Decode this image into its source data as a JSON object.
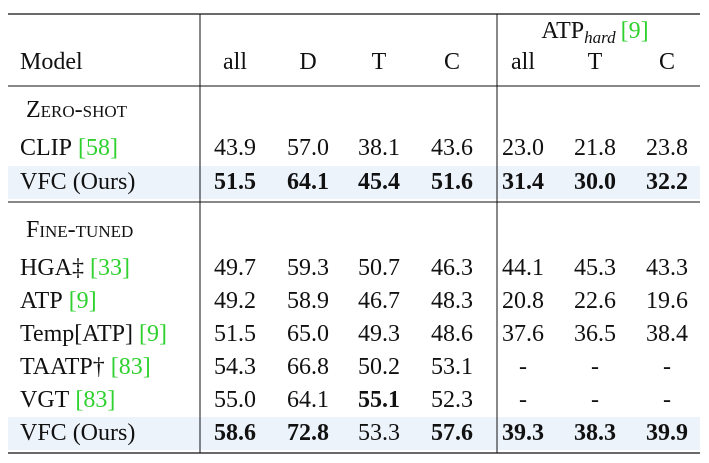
{
  "table": {
    "group_header": {
      "text": "ATP",
      "subscript": "hard",
      "cite": "[9]"
    },
    "columns": [
      "Model",
      "all",
      "D",
      "T",
      "C",
      "all",
      "T",
      "C"
    ],
    "sections": [
      {
        "title": "Zero-shot",
        "rows": [
          {
            "model": "CLIP",
            "cite": "[58]",
            "values": [
              "43.9",
              "57.0",
              "38.1",
              "43.6",
              "23.0",
              "21.8",
              "23.8"
            ],
            "bold": [
              false,
              false,
              false,
              false,
              false,
              false,
              false
            ]
          },
          {
            "model": "VFC (Ours)",
            "values": [
              "51.5",
              "64.1",
              "45.4",
              "51.6",
              "31.4",
              "30.0",
              "32.2"
            ],
            "bold": [
              true,
              true,
              true,
              true,
              true,
              true,
              true
            ],
            "highlight": true
          }
        ]
      },
      {
        "title": "Fine-tuned",
        "rows": [
          {
            "model": "HGA‡",
            "cite": "[33]",
            "values": [
              "49.7",
              "59.3",
              "50.7",
              "46.3",
              "44.1",
              "45.3",
              "43.3"
            ],
            "bold": [
              false,
              false,
              false,
              false,
              false,
              false,
              false
            ],
            "muted": true
          },
          {
            "model": "ATP",
            "cite": "[9]",
            "values": [
              "49.2",
              "58.9",
              "46.7",
              "48.3",
              "20.8",
              "22.6",
              "19.6"
            ],
            "bold": [
              false,
              false,
              false,
              false,
              false,
              false,
              false
            ]
          },
          {
            "model": "Temp[ATP]",
            "cite": "[9]",
            "values": [
              "51.5",
              "65.0",
              "49.3",
              "48.6",
              "37.6",
              "36.5",
              "38.4"
            ],
            "bold": [
              false,
              false,
              false,
              false,
              false,
              false,
              false
            ]
          },
          {
            "model": "TAATP†",
            "cite": "[83]",
            "values": [
              "54.3",
              "66.8",
              "50.2",
              "53.1",
              "-",
              "-",
              "-"
            ],
            "bold": [
              false,
              false,
              false,
              false,
              false,
              false,
              false
            ]
          },
          {
            "model": "VGT",
            "cite": "[83]",
            "values": [
              "55.0",
              "64.1",
              "55.1",
              "52.3",
              "-",
              "-",
              "-"
            ],
            "bold": [
              false,
              false,
              true,
              false,
              false,
              false,
              false
            ]
          },
          {
            "model": "VFC (Ours)",
            "values": [
              "58.6",
              "72.8",
              "53.3",
              "57.6",
              "39.3",
              "38.3",
              "39.9"
            ],
            "bold": [
              true,
              true,
              false,
              true,
              true,
              true,
              true
            ],
            "highlight": true
          }
        ]
      }
    ]
  }
}
